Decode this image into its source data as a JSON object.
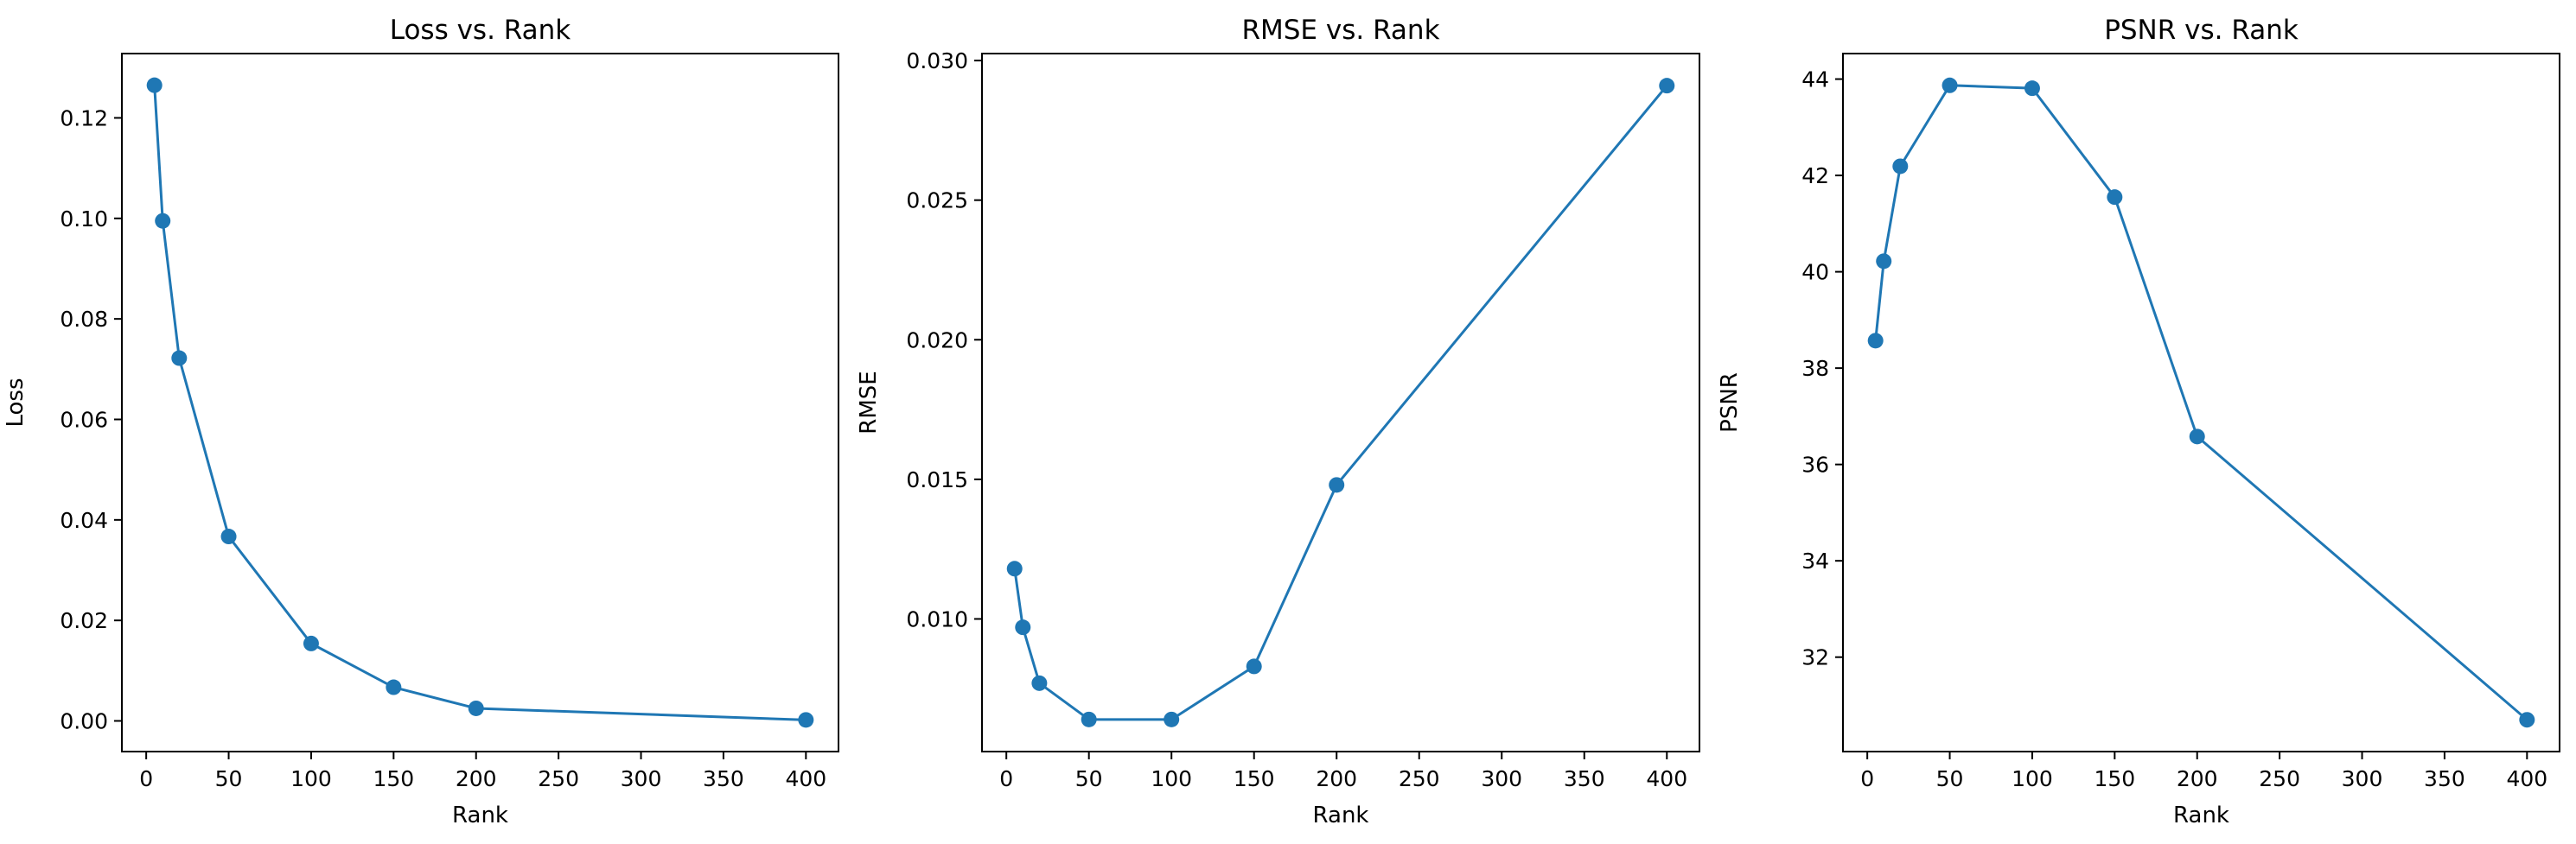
{
  "chart_data": [
    {
      "type": "line",
      "title": "Loss vs. Rank",
      "xlabel": "Rank",
      "ylabel": "Loss",
      "x": [
        5,
        10,
        20,
        50,
        100,
        150,
        200,
        400
      ],
      "series": [
        {
          "values": [
            0.1265,
            0.0995,
            0.0722,
            0.0367,
            0.0154,
            0.0067,
            0.0025,
            0.0002
          ]
        }
      ],
      "xlim": [
        -14.75,
        419.75
      ],
      "ylim": [
        -0.0061,
        0.1328
      ],
      "xticks": [
        0,
        50,
        100,
        150,
        200,
        250,
        300,
        350,
        400
      ],
      "yticks": [
        0.0,
        0.02,
        0.04,
        0.06,
        0.08,
        0.1,
        0.12
      ],
      "xtick_labels": [
        "0",
        "50",
        "100",
        "150",
        "200",
        "250",
        "300",
        "350",
        "400"
      ],
      "ytick_labels": [
        "0.00",
        "0.02",
        "0.04",
        "0.06",
        "0.08",
        "0.10",
        "0.12"
      ],
      "grid": false,
      "legend": false,
      "color": "#1f77b4",
      "marker": "circle"
    },
    {
      "type": "line",
      "title": "RMSE vs. Rank",
      "xlabel": "Rank",
      "ylabel": "RMSE",
      "x": [
        5,
        10,
        20,
        50,
        100,
        150,
        200,
        400
      ],
      "series": [
        {
          "values": [
            0.0118,
            0.0097,
            0.0077,
            0.0064,
            0.0064,
            0.0083,
            0.0148,
            0.0291
          ]
        }
      ],
      "xlim": [
        -14.75,
        419.75
      ],
      "ylim": [
        0.00525,
        0.03025
      ],
      "xticks": [
        0,
        50,
        100,
        150,
        200,
        250,
        300,
        350,
        400
      ],
      "yticks": [
        0.01,
        0.015,
        0.02,
        0.025,
        0.03
      ],
      "xtick_labels": [
        "0",
        "50",
        "100",
        "150",
        "200",
        "250",
        "300",
        "350",
        "400"
      ],
      "ytick_labels": [
        "0.010",
        "0.015",
        "0.020",
        "0.025",
        "0.030"
      ],
      "grid": false,
      "legend": false,
      "color": "#1f77b4",
      "marker": "circle"
    },
    {
      "type": "line",
      "title": "PSNR vs. Rank",
      "xlabel": "Rank",
      "ylabel": "PSNR",
      "x": [
        5,
        10,
        20,
        50,
        100,
        150,
        200,
        400
      ],
      "series": [
        {
          "values": [
            38.57,
            40.22,
            42.19,
            43.87,
            43.81,
            41.55,
            36.58,
            30.7
          ]
        }
      ],
      "xlim": [
        -14.75,
        419.75
      ],
      "ylim": [
        30.04,
        44.53
      ],
      "xticks": [
        0,
        50,
        100,
        150,
        200,
        250,
        300,
        350,
        400
      ],
      "yticks": [
        32,
        34,
        36,
        38,
        40,
        42,
        44
      ],
      "xtick_labels": [
        "0",
        "50",
        "100",
        "150",
        "200",
        "250",
        "300",
        "350",
        "400"
      ],
      "ytick_labels": [
        "32",
        "34",
        "36",
        "38",
        "40",
        "42",
        "44"
      ],
      "grid": false,
      "legend": false,
      "color": "#1f77b4",
      "marker": "circle"
    }
  ]
}
